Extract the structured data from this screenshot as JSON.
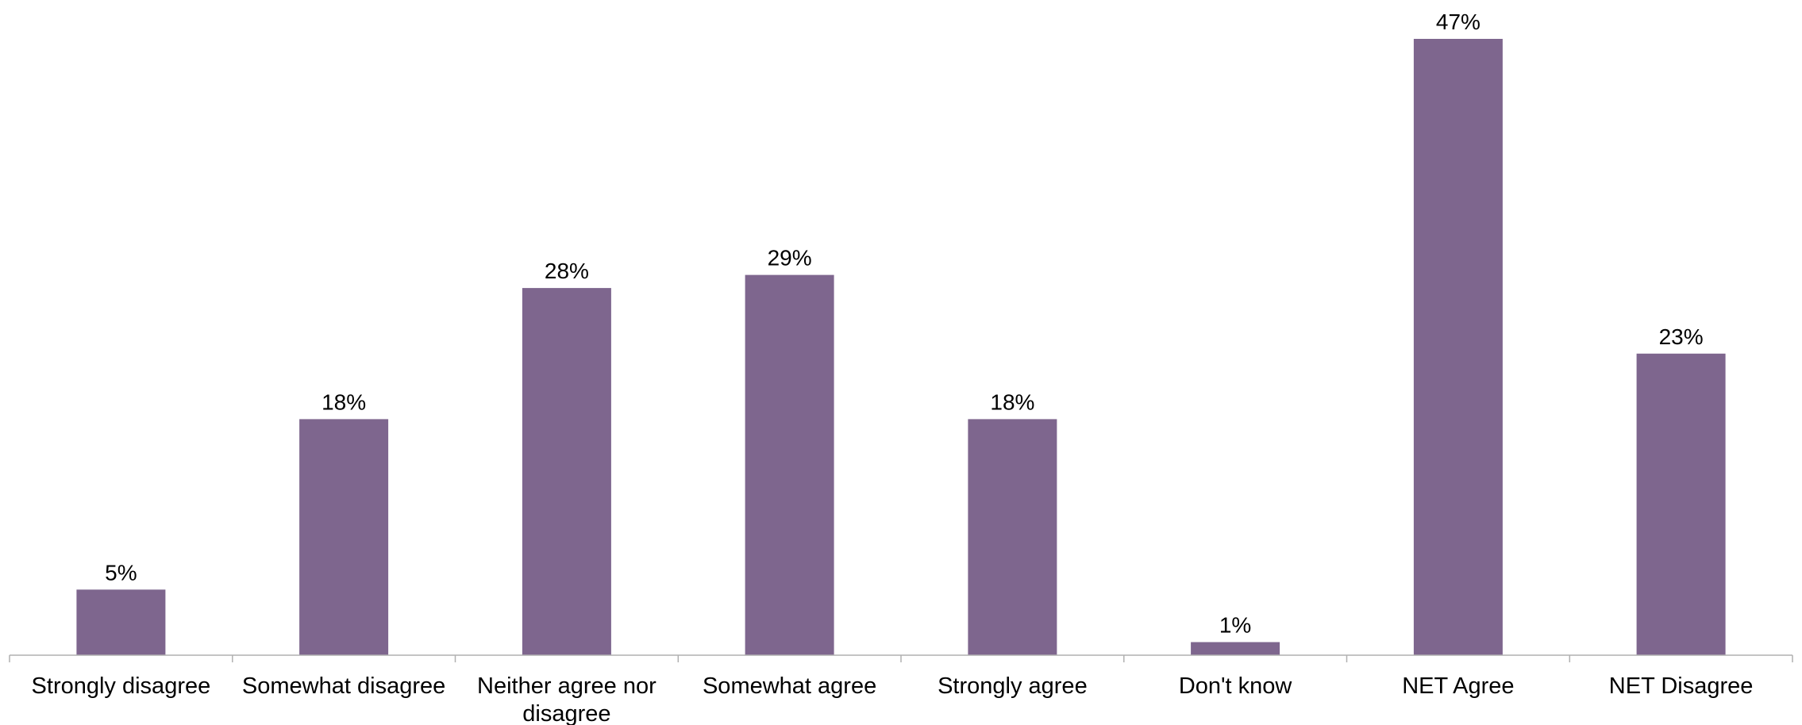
{
  "chart_data": {
    "type": "bar",
    "title": "",
    "xlabel": "",
    "ylabel": "",
    "categories": [
      "Strongly disagree",
      "Somewhat disagree",
      "Neither agree nor disagree",
      "Somewhat agree",
      "Strongly agree",
      "Don't know",
      "NET Agree",
      "NET Disagree"
    ],
    "values": [
      5,
      18,
      28,
      29,
      18,
      1,
      47,
      23
    ],
    "data_labels": [
      "5%",
      "18%",
      "28%",
      "29%",
      "18%",
      "1%",
      "47%",
      "23%"
    ],
    "ylim": [
      0,
      47
    ],
    "grid": false,
    "legend": "none",
    "colors": {
      "bar": "#7e668e",
      "axis": "#b0b0b0",
      "text": "#000000"
    }
  }
}
